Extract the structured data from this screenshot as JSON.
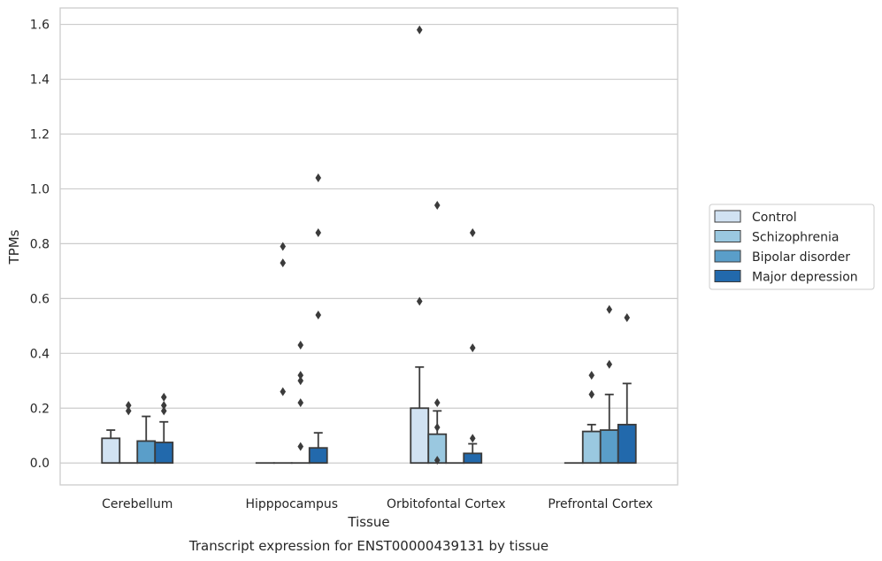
{
  "chart_data": {
    "type": "bar",
    "caption": "Transcript expression for ENST00000439131 by tissue",
    "xlabel": "Tissue",
    "ylabel": "TPMs",
    "ylim": [
      -0.08,
      1.66
    ],
    "yticks": [
      0.0,
      0.2,
      0.4,
      0.6,
      0.8,
      1.0,
      1.2,
      1.4,
      1.6
    ],
    "ytick_labels": [
      "0.0",
      "0.2",
      "0.4",
      "0.6",
      "0.8",
      "1.0",
      "1.2",
      "1.4",
      "1.6"
    ],
    "grid": true,
    "legend_position": "right",
    "categories": [
      "Cerebellum",
      "Hipppocampus",
      "Orbitofontal Cortex",
      "Prefrontal Cortex"
    ],
    "series": [
      {
        "name": "Control",
        "color": "#d1e2f2",
        "values": [
          0.09,
          0.0,
          0.2,
          0.0
        ],
        "err_upper": [
          0.12,
          0.0,
          0.35,
          0.0
        ],
        "outliers": [
          [],
          [],
          [
            1.58,
            0.59
          ],
          []
        ]
      },
      {
        "name": "Schizophrenia",
        "color": "#9ac8e0",
        "values": [
          0.0,
          0.0,
          0.105,
          0.115
        ],
        "err_upper": [
          0.0,
          0.0,
          0.19,
          0.14
        ],
        "outliers": [
          [
            0.21,
            0.19
          ],
          [
            0.79,
            0.73,
            0.26
          ],
          [
            0.94,
            0.22,
            0.13,
            0.01
          ],
          [
            0.32,
            0.25
          ]
        ]
      },
      {
        "name": "Bipolar disorder",
        "color": "#5a9ec9",
        "values": [
          0.08,
          0.0,
          0.0,
          0.12
        ],
        "err_upper": [
          0.17,
          0.0,
          0.0,
          0.25
        ],
        "outliers": [
          [],
          [
            0.43,
            0.32,
            0.22,
            0.3,
            0.06
          ],
          [],
          [
            0.56,
            0.36
          ]
        ]
      },
      {
        "name": "Major depression",
        "color": "#2269ac",
        "values": [
          0.075,
          0.055,
          0.035,
          0.14
        ],
        "err_upper": [
          0.15,
          0.11,
          0.07,
          0.29
        ],
        "outliers": [
          [
            0.24,
            0.21,
            0.19
          ],
          [
            1.04,
            0.84,
            0.54
          ],
          [
            0.84,
            0.42,
            0.09
          ],
          [
            0.53
          ]
        ]
      }
    ]
  }
}
